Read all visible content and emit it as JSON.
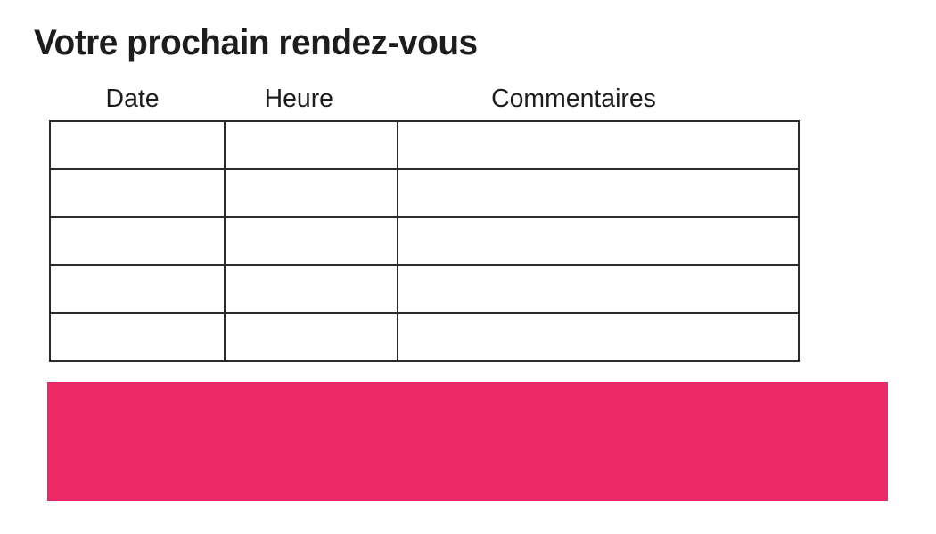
{
  "page": {
    "title": "Votre prochain rendez-vous"
  },
  "table": {
    "columns": [
      "Date",
      "Heure",
      "Commentaires"
    ],
    "rows": [
      [
        "",
        "",
        ""
      ],
      [
        "",
        "",
        ""
      ],
      [
        "",
        "",
        ""
      ],
      [
        "",
        "",
        ""
      ],
      [
        "",
        "",
        ""
      ]
    ]
  },
  "colors": {
    "accent_pink": "#ED2A67",
    "text": "#1D1D1B",
    "table_border": "#2B2B2B"
  }
}
